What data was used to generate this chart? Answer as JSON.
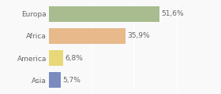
{
  "categories": [
    "Europa",
    "Africa",
    "America",
    "Asia"
  ],
  "values": [
    51.6,
    35.9,
    6.8,
    5.7
  ],
  "labels": [
    "51,6%",
    "35,9%",
    "6,8%",
    "5,7%"
  ],
  "bar_colors": [
    "#a8bc8f",
    "#e8b98a",
    "#e8d87a",
    "#7a8bbf"
  ],
  "background_color": "#f9f9f9",
  "text_color": "#666666",
  "label_fontsize": 6.5,
  "tick_fontsize": 6.5,
  "xlim": [
    0,
    68
  ],
  "bar_height": 0.72,
  "grid_color": "#ffffff",
  "grid_linewidth": 1.2
}
